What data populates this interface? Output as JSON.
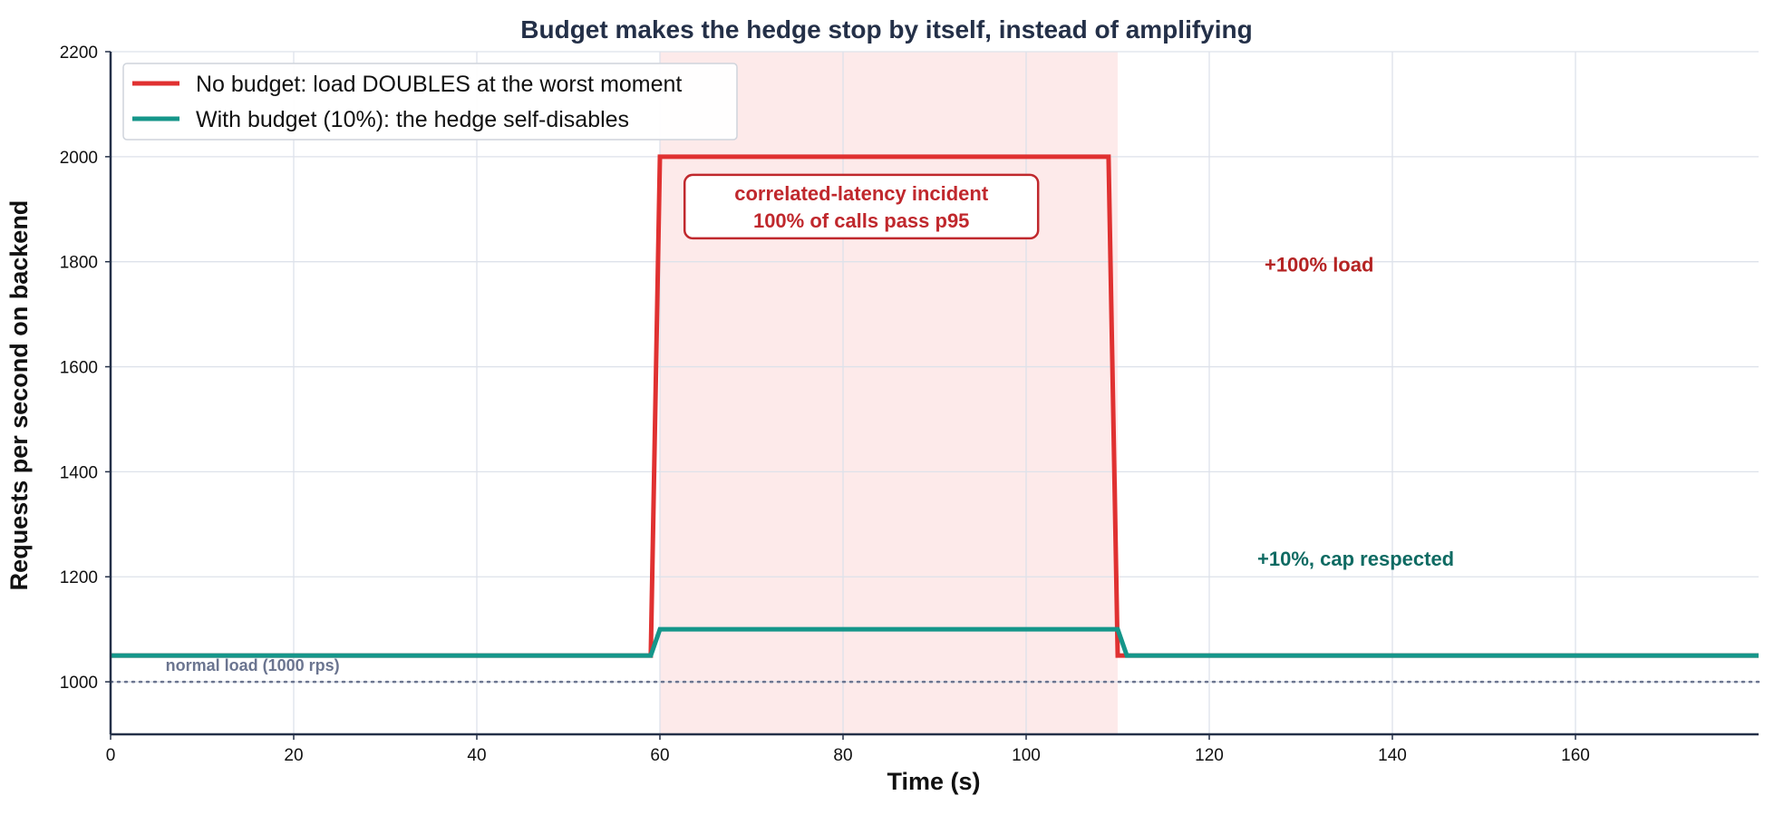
{
  "chart_data": {
    "type": "line",
    "title": "Budget makes the hedge stop by itself, instead of amplifying",
    "xlabel": "Time (s)",
    "ylabel": "Requests per second on backend",
    "xlim": [
      0,
      180
    ],
    "ylim": [
      900,
      2200
    ],
    "xticks": [
      0,
      20,
      40,
      60,
      80,
      100,
      120,
      140,
      160
    ],
    "yticks": [
      1000,
      1200,
      1400,
      1600,
      1800,
      2000,
      2200
    ],
    "grid": true,
    "legend_position": "top-left",
    "series": [
      {
        "name": "No budget: load DOUBLES at the worst moment",
        "color": "#e03131",
        "x": [
          0,
          59,
          60,
          109,
          110,
          180
        ],
        "y": [
          1050,
          1050,
          2000,
          2000,
          1050,
          1050
        ]
      },
      {
        "name": "With budget (10%): the hedge self-disables",
        "color": "#15968a",
        "x": [
          0,
          59,
          60,
          110,
          111,
          180
        ],
        "y": [
          1050,
          1050,
          1100,
          1100,
          1050,
          1050
        ]
      }
    ],
    "shaded_region": {
      "x": [
        60,
        110
      ],
      "color": "#fdeaea"
    },
    "reference_line": {
      "y": 1000,
      "label": "normal load (1000 rps)",
      "color": "#6b7590"
    },
    "annotations": [
      {
        "lines": [
          "correlated-latency incident",
          "100% of calls pass p95"
        ],
        "x": 82,
        "y": 1905,
        "color": "#c0282d",
        "boxed": true
      },
      {
        "lines": [
          "+100% load"
        ],
        "x": 132,
        "y": 1795,
        "color": "#b42323",
        "boxed": false
      },
      {
        "lines": [
          "+10%, cap respected"
        ],
        "x": 136,
        "y": 1235,
        "color": "#0f6b63",
        "boxed": false
      }
    ]
  }
}
